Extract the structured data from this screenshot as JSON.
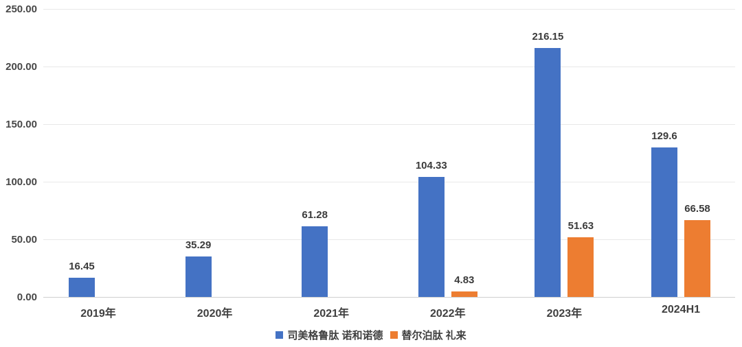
{
  "chart_data": {
    "type": "bar",
    "categories": [
      "2019年",
      "2020年",
      "2021年",
      "2022年",
      "2023年",
      "2024H1"
    ],
    "series": [
      {
        "name": "司美格鲁肽 诺和诺德",
        "color": "#4472C4",
        "values": [
          16.45,
          35.29,
          61.28,
          104.33,
          216.15,
          129.6
        ],
        "labels": [
          "16.45",
          "35.29",
          "61.28",
          "104.33",
          "216.15",
          "129.6"
        ]
      },
      {
        "name": "替尔泊肽 礼来",
        "color": "#ED7D31",
        "values": [
          null,
          null,
          null,
          4.83,
          51.63,
          66.58
        ],
        "labels": [
          null,
          null,
          null,
          "4.83",
          "51.63",
          "66.58"
        ]
      }
    ],
    "y_axis": {
      "min": 0,
      "max": 250,
      "ticks": [
        0,
        50,
        100,
        150,
        200,
        250
      ],
      "tick_labels": [
        "0.00",
        "50.00",
        "100.00",
        "150.00",
        "200.00",
        "250.00"
      ]
    },
    "grid": true,
    "legend_position": "bottom"
  }
}
